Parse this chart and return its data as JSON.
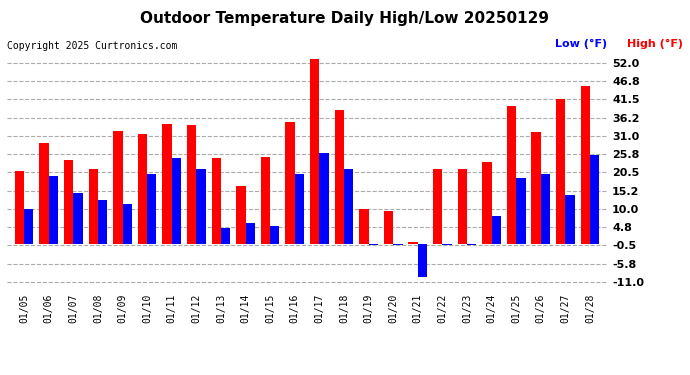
{
  "title": "Outdoor Temperature Daily High/Low 20250129",
  "copyright": "Copyright 2025 Curtronics.com",
  "legend_low": "Low (°F)",
  "legend_high": "High (°F)",
  "low_color": "#0000ff",
  "high_color": "#ff0000",
  "dates": [
    "01/05",
    "01/06",
    "01/07",
    "01/08",
    "01/09",
    "01/10",
    "01/11",
    "01/12",
    "01/13",
    "01/14",
    "01/15",
    "01/16",
    "01/17",
    "01/18",
    "01/19",
    "01/20",
    "01/21",
    "01/22",
    "01/23",
    "01/24",
    "01/25",
    "01/26",
    "01/27",
    "01/28"
  ],
  "highs": [
    21.0,
    29.0,
    24.0,
    21.5,
    32.5,
    31.5,
    34.5,
    34.0,
    24.5,
    16.5,
    25.0,
    35.0,
    53.0,
    38.5,
    10.0,
    9.5,
    0.5,
    21.5,
    21.5,
    23.5,
    39.5,
    32.0,
    41.5,
    45.5
  ],
  "lows": [
    10.0,
    19.5,
    14.5,
    12.5,
    11.5,
    20.0,
    24.5,
    21.5,
    4.5,
    6.0,
    5.0,
    20.0,
    26.0,
    21.5,
    -0.5,
    -0.5,
    -9.5,
    -0.5,
    -0.5,
    8.0,
    19.0,
    20.0,
    14.0,
    25.5
  ],
  "ylim": [
    -13.0,
    55.0
  ],
  "yticks": [
    -11.0,
    -5.8,
    -0.5,
    4.8,
    10.0,
    15.2,
    20.5,
    25.8,
    31.0,
    36.2,
    41.5,
    46.8,
    52.0
  ],
  "background_color": "#ffffff",
  "grid_color": "#aaaaaa",
  "bar_width": 0.38
}
